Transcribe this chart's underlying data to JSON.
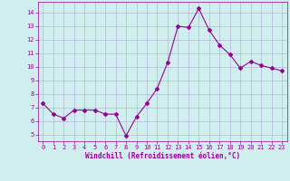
{
  "x": [
    0,
    1,
    2,
    3,
    4,
    5,
    6,
    7,
    8,
    9,
    10,
    11,
    12,
    13,
    14,
    15,
    16,
    17,
    18,
    19,
    20,
    21,
    22,
    23
  ],
  "y": [
    7.3,
    6.5,
    6.2,
    6.8,
    6.8,
    6.8,
    6.5,
    6.5,
    4.9,
    6.3,
    7.3,
    8.4,
    10.3,
    13.0,
    12.9,
    14.3,
    12.7,
    11.6,
    10.9,
    9.9,
    10.4,
    10.1,
    9.9,
    9.7
  ],
  "line_color": "#990099",
  "marker": "D",
  "marker_size": 2,
  "background_color": "#d0eeee",
  "grid_color": "#aaaacc",
  "xlabel": "Windchill (Refroidissement éolien,°C)",
  "xlabel_color": "#990099",
  "tick_color": "#990099",
  "ylim": [
    4.5,
    14.8
  ],
  "xlim": [
    -0.5,
    23.5
  ],
  "yticks": [
    5,
    6,
    7,
    8,
    9,
    10,
    11,
    12,
    13,
    14
  ],
  "xticks": [
    0,
    1,
    2,
    3,
    4,
    5,
    6,
    7,
    8,
    9,
    10,
    11,
    12,
    13,
    14,
    15,
    16,
    17,
    18,
    19,
    20,
    21,
    22,
    23
  ],
  "figsize": [
    3.2,
    2.0
  ],
  "dpi": 100
}
